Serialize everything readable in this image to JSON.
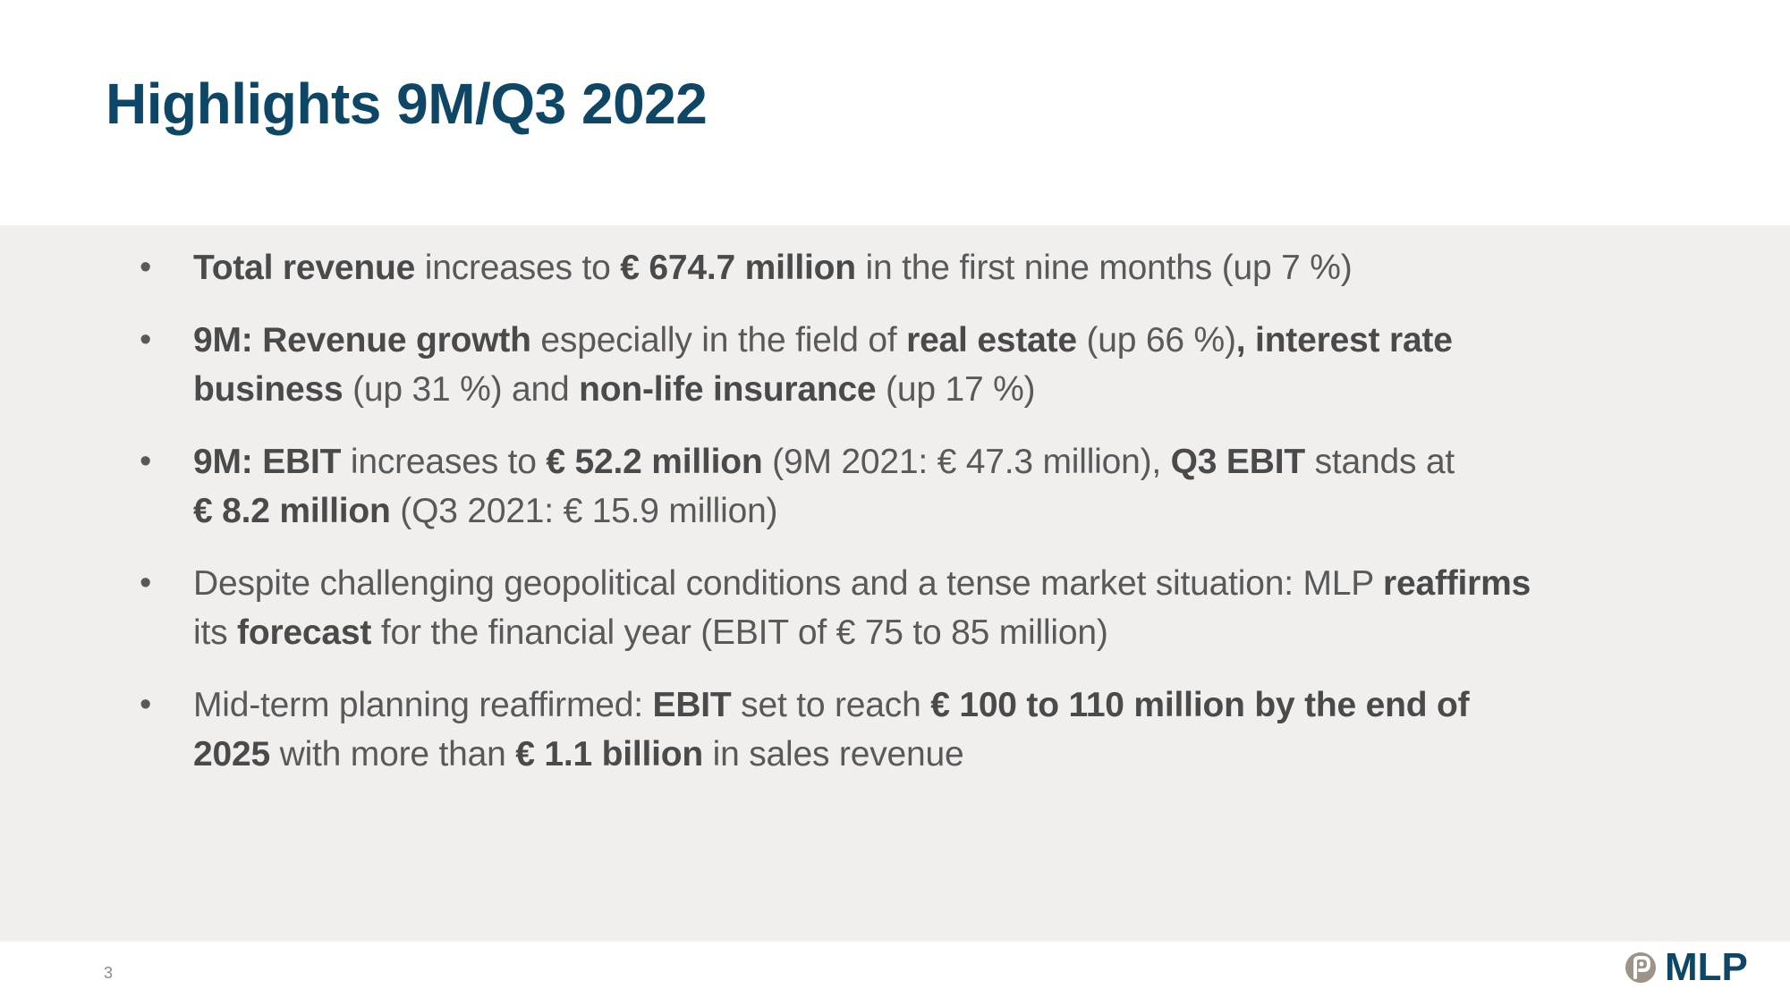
{
  "slide": {
    "title": "Highlights 9M/Q3 2022",
    "page_number": "3",
    "logo_text": "MLP",
    "colors": {
      "title": "#0e4666",
      "band": "#f0efee",
      "text": "#595959",
      "logo_mark": "#9c9488"
    }
  },
  "bullets": [
    {
      "marker": "•",
      "lines": [
        [
          {
            "text": "Total revenue",
            "bold": true
          },
          {
            "text": " increases to ",
            "bold": false
          },
          {
            "text": "€ 674.7 million",
            "bold": true
          },
          {
            "text": " in the first nine months (up 7 %)",
            "bold": false
          }
        ]
      ]
    },
    {
      "marker": "•",
      "lines": [
        [
          {
            "text": "9M: Revenue growth",
            "bold": true
          },
          {
            "text": " especially in the field of ",
            "bold": false
          },
          {
            "text": "real estate",
            "bold": true
          },
          {
            "text": " (up 66 %)",
            "bold": false
          },
          {
            "text": ", interest rate",
            "bold": true
          }
        ],
        [
          {
            "text": "business",
            "bold": true
          },
          {
            "text": " (up 31 %) and ",
            "bold": false
          },
          {
            "text": "non-life insurance",
            "bold": true
          },
          {
            "text": " (up 17 %)",
            "bold": false
          }
        ]
      ]
    },
    {
      "marker": "•",
      "lines": [
        [
          {
            "text": "9M: EBIT",
            "bold": true
          },
          {
            "text": " increases to ",
            "bold": false
          },
          {
            "text": "€ 52.2 million",
            "bold": true
          },
          {
            "text": " (9M 2021: € 47.3 million), ",
            "bold": false
          },
          {
            "text": "Q3 EBIT",
            "bold": true
          },
          {
            "text": " stands at",
            "bold": false
          }
        ],
        [
          {
            "text": "€ 8.2 million",
            "bold": true
          },
          {
            "text": " (Q3 2021: € 15.9 million)",
            "bold": false
          }
        ]
      ]
    },
    {
      "marker": "•",
      "lines": [
        [
          {
            "text": "Despite challenging geopolitical conditions and a tense market situation: MLP ",
            "bold": false
          },
          {
            "text": "reaffirms",
            "bold": true
          }
        ],
        [
          {
            "text": "its ",
            "bold": false
          },
          {
            "text": "forecast",
            "bold": true
          },
          {
            "text": " for the financial year (EBIT of € 75 to 85 million)",
            "bold": false
          }
        ]
      ]
    },
    {
      "marker": "•",
      "lines": [
        [
          {
            "text": "Mid-term planning reaffirmed: ",
            "bold": false
          },
          {
            "text": "EBIT",
            "bold": true
          },
          {
            "text": " set to reach ",
            "bold": false
          },
          {
            "text": "€ 100 to 110 million by the end of",
            "bold": true
          }
        ],
        [
          {
            "text": "2025",
            "bold": true
          },
          {
            "text": " with more than ",
            "bold": false
          },
          {
            "text": "€ 1.1 billion",
            "bold": true
          },
          {
            "text": " in sales revenue",
            "bold": false
          }
        ]
      ]
    }
  ]
}
